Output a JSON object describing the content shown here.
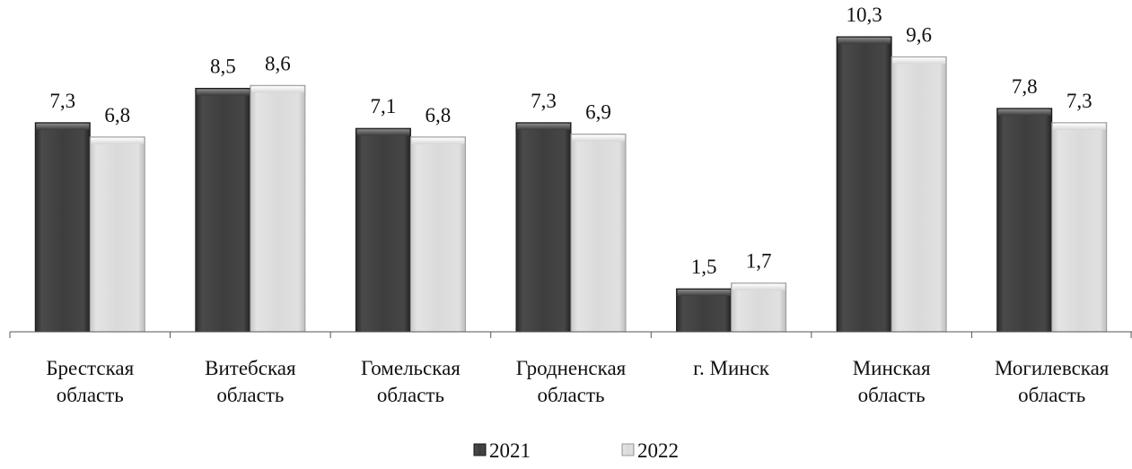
{
  "chart_data": {
    "type": "bar",
    "title": "",
    "xlabel": "",
    "ylabel": "",
    "ylim": [
      0,
      10.8
    ],
    "grid": false,
    "legend": "bottom",
    "categories": [
      [
        "Брестская",
        "область"
      ],
      [
        "Витебская",
        "область"
      ],
      [
        "Гомельская",
        "область"
      ],
      [
        "Гродненская",
        "область"
      ],
      [
        "г. Минск"
      ],
      [
        "Минская",
        "область"
      ],
      [
        "Могилевская",
        "область"
      ]
    ],
    "series": [
      {
        "name": "2021",
        "values": [
          7.3,
          8.5,
          7.1,
          7.3,
          1.5,
          10.3,
          7.8
        ],
        "labels": [
          "7,3",
          "8,5",
          "7,1",
          "7,3",
          "1,5",
          "10,3",
          "7,8"
        ],
        "color": "#3d3d3d"
      },
      {
        "name": "2022",
        "values": [
          6.8,
          8.6,
          6.8,
          6.9,
          1.7,
          9.6,
          7.3
        ],
        "labels": [
          "6,8",
          "8,6",
          "6,8",
          "6,9",
          "1,7",
          "9,6",
          "7,3"
        ],
        "color": "#d9d9d9"
      }
    ]
  }
}
